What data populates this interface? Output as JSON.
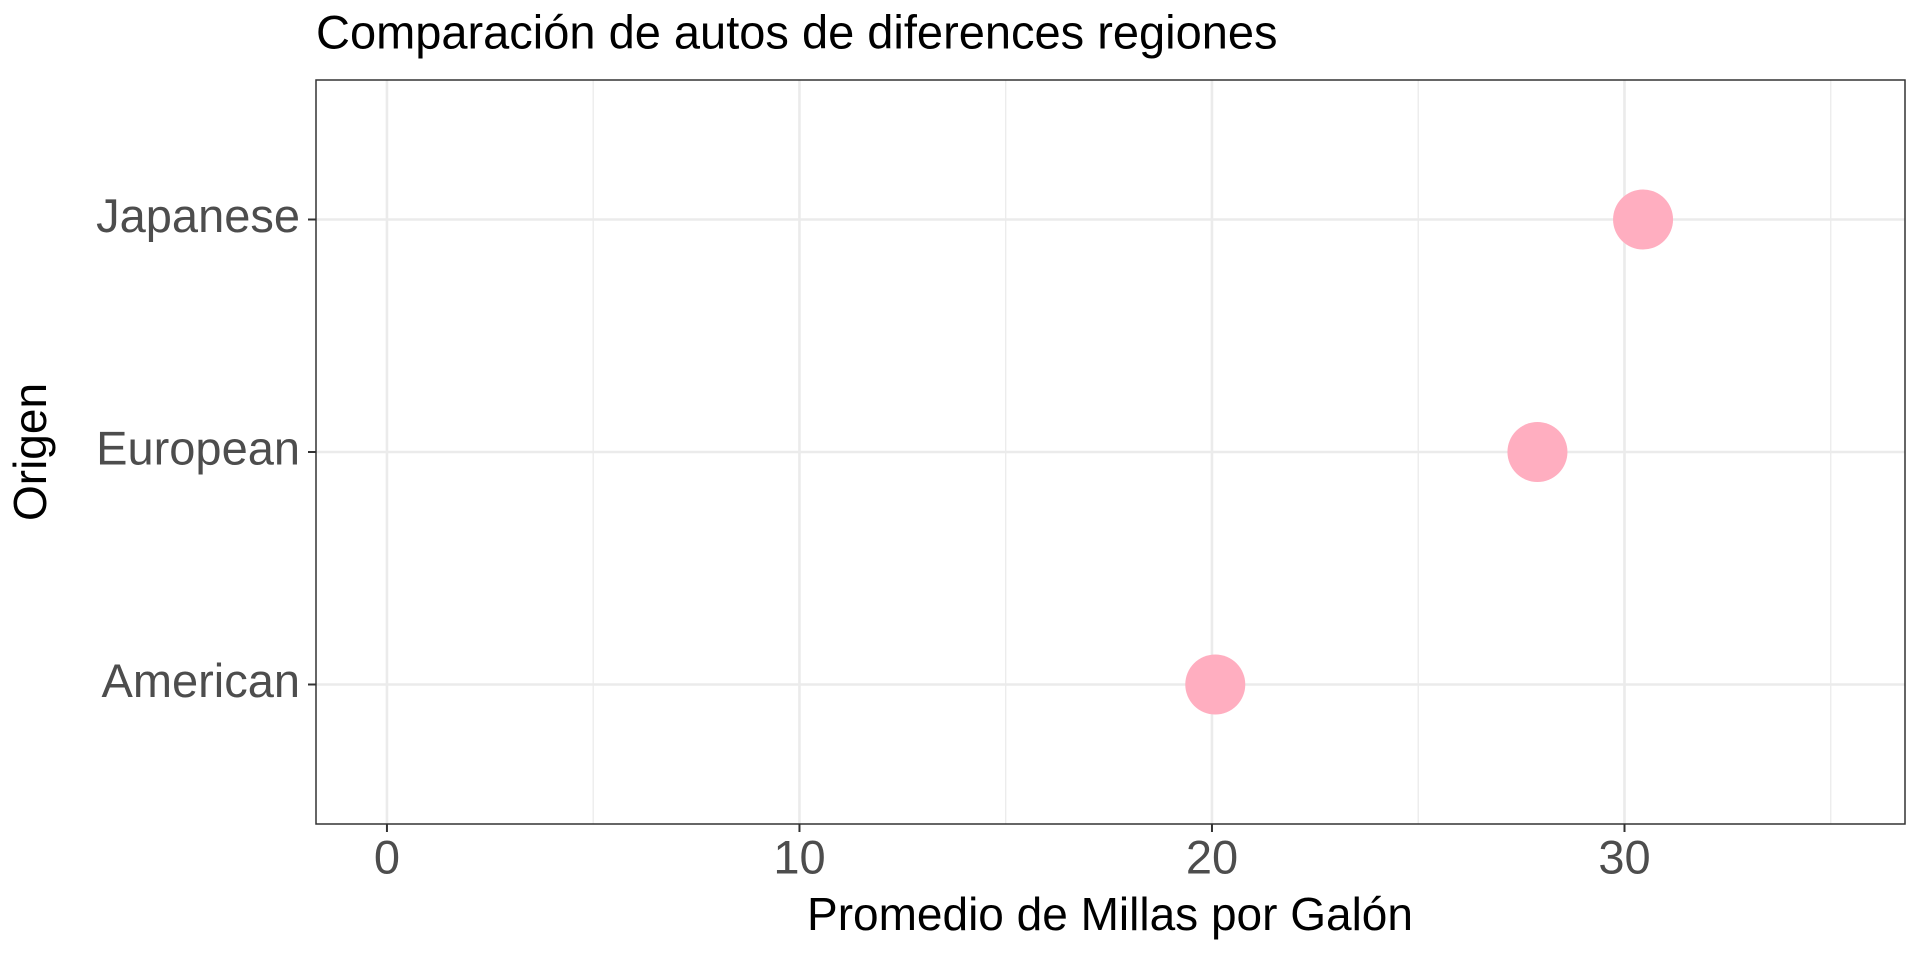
{
  "chart_data": {
    "type": "dot",
    "title": "Comparación de autos de diferences regiones",
    "x_label": "Promedio de Millas por Galón",
    "y_label": "Origen",
    "categories": [
      "American",
      "European",
      "Japanese"
    ],
    "values": [
      20.08,
      27.89,
      30.45
    ],
    "color": "#ffaec0",
    "xlim": [
      -1.72,
      36.8
    ],
    "xticks": [
      0,
      10,
      20,
      30
    ],
    "x_minor_grid": [
      5,
      15,
      25,
      35
    ],
    "grid": true
  }
}
